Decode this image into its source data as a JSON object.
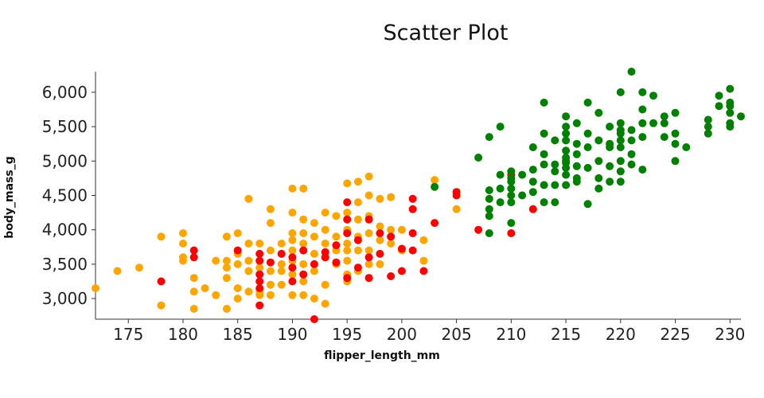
{
  "chart_data": {
    "type": "scatter",
    "title": "Scatter Plot",
    "xlabel": "flipper_length_mm",
    "ylabel": "body_mass_g",
    "xlim": [
      172,
      231
    ],
    "ylim": [
      2700,
      6300
    ],
    "x_ticks": [
      175,
      180,
      185,
      190,
      195,
      200,
      205,
      210,
      215,
      220,
      225,
      230
    ],
    "y_ticks": [
      3000,
      3500,
      4000,
      4500,
      5000,
      5500,
      6000
    ],
    "y_tick_labels": [
      "3,000",
      "3,500",
      "4,000",
      "4,500",
      "5,000",
      "5,500",
      "6,000"
    ],
    "grid": false,
    "series": [
      {
        "color": "#FFA500",
        "points": [
          [
            172,
            3150
          ],
          [
            174,
            3400
          ],
          [
            176,
            3450
          ],
          [
            178,
            3900
          ],
          [
            178,
            2900
          ],
          [
            180,
            3950
          ],
          [
            180,
            3800
          ],
          [
            180,
            3600
          ],
          [
            180,
            3550
          ],
          [
            181,
            3300
          ],
          [
            181,
            3100
          ],
          [
            181,
            2850
          ],
          [
            182,
            3150
          ],
          [
            183,
            3550
          ],
          [
            183,
            3050
          ],
          [
            184,
            3900
          ],
          [
            184,
            3550
          ],
          [
            184,
            3450
          ],
          [
            184,
            3300
          ],
          [
            184,
            2850
          ],
          [
            185,
            3950
          ],
          [
            185,
            3650
          ],
          [
            185,
            3500
          ],
          [
            185,
            3150
          ],
          [
            185,
            3000
          ],
          [
            186,
            4450
          ],
          [
            186,
            3800
          ],
          [
            186,
            3550
          ],
          [
            186,
            3400
          ],
          [
            186,
            3100
          ],
          [
            187,
            3800
          ],
          [
            187,
            3550
          ],
          [
            187,
            3450
          ],
          [
            187,
            3100
          ],
          [
            187,
            3050
          ],
          [
            188,
            4300
          ],
          [
            188,
            4100
          ],
          [
            188,
            3700
          ],
          [
            188,
            3400
          ],
          [
            188,
            3200
          ],
          [
            188,
            3050
          ],
          [
            189,
            3800
          ],
          [
            189,
            3650
          ],
          [
            189,
            3500
          ],
          [
            189,
            3400
          ],
          [
            189,
            3200
          ],
          [
            190,
            4600
          ],
          [
            190,
            4250
          ],
          [
            190,
            3950
          ],
          [
            190,
            3850
          ],
          [
            190,
            3700
          ],
          [
            190,
            3550
          ],
          [
            190,
            3450
          ],
          [
            190,
            3350
          ],
          [
            190,
            3050
          ],
          [
            191,
            4600
          ],
          [
            191,
            4150
          ],
          [
            191,
            3950
          ],
          [
            191,
            3800
          ],
          [
            191,
            3700
          ],
          [
            191,
            3500
          ],
          [
            191,
            3250
          ],
          [
            191,
            3050
          ],
          [
            192,
            4100
          ],
          [
            192,
            3900
          ],
          [
            192,
            3650
          ],
          [
            192,
            3400
          ],
          [
            192,
            3000
          ],
          [
            193,
            4250
          ],
          [
            193,
            4000
          ],
          [
            193,
            3800
          ],
          [
            193,
            3600
          ],
          [
            193,
            3200
          ],
          [
            193,
            2925
          ],
          [
            194,
            4200
          ],
          [
            194,
            3900
          ],
          [
            194,
            3700
          ],
          [
            194,
            3500
          ],
          [
            195,
            4675
          ],
          [
            195,
            4250
          ],
          [
            195,
            4000
          ],
          [
            195,
            3800
          ],
          [
            195,
            3700
          ],
          [
            195,
            3550
          ],
          [
            195,
            3350
          ],
          [
            195,
            3250
          ],
          [
            196,
            4700
          ],
          [
            196,
            4400
          ],
          [
            196,
            4150
          ],
          [
            196,
            3900
          ],
          [
            196,
            3700
          ],
          [
            196,
            3400
          ],
          [
            197,
            4775
          ],
          [
            197,
            4500
          ],
          [
            197,
            4200
          ],
          [
            197,
            3950
          ],
          [
            197,
            3700
          ],
          [
            197,
            3500
          ],
          [
            197,
            3300
          ],
          [
            198,
            4450
          ],
          [
            198,
            4050
          ],
          [
            198,
            3850
          ],
          [
            198,
            3500
          ],
          [
            199,
            4475
          ],
          [
            199,
            4000
          ],
          [
            199,
            3800
          ],
          [
            200,
            4000
          ],
          [
            200,
            3700
          ],
          [
            202,
            3850
          ],
          [
            202,
            3550
          ],
          [
            203,
            4725
          ],
          [
            205,
            4550
          ],
          [
            205,
            4300
          ]
        ]
      },
      {
        "color": "#FF0000",
        "points": [
          [
            178,
            3250
          ],
          [
            181,
            3700
          ],
          [
            181,
            3600
          ],
          [
            185,
            3700
          ],
          [
            187,
            3650
          ],
          [
            187,
            3550
          ],
          [
            187,
            3350
          ],
          [
            187,
            3250
          ],
          [
            187,
            3150
          ],
          [
            187,
            2900
          ],
          [
            188,
            3525
          ],
          [
            189,
            3650
          ],
          [
            190,
            3600
          ],
          [
            190,
            3450
          ],
          [
            190,
            3250
          ],
          [
            191,
            3700
          ],
          [
            191,
            3350
          ],
          [
            192,
            3500
          ],
          [
            192,
            2700
          ],
          [
            193,
            3675
          ],
          [
            193,
            3600
          ],
          [
            194,
            3775
          ],
          [
            194,
            3525
          ],
          [
            195,
            4400
          ],
          [
            195,
            4150
          ],
          [
            195,
            3950
          ],
          [
            195,
            3300
          ],
          [
            196,
            3850
          ],
          [
            196,
            3450
          ],
          [
            197,
            4150
          ],
          [
            197,
            3600
          ],
          [
            197,
            3300
          ],
          [
            198,
            3950
          ],
          [
            198,
            3650
          ],
          [
            199,
            3900
          ],
          [
            199,
            3325
          ],
          [
            200,
            3725
          ],
          [
            200,
            3400
          ],
          [
            201,
            4450
          ],
          [
            201,
            4300
          ],
          [
            201,
            3950
          ],
          [
            201,
            3700
          ],
          [
            202,
            3400
          ],
          [
            203,
            4100
          ],
          [
            205,
            4550
          ],
          [
            205,
            4500
          ],
          [
            207,
            4000
          ],
          [
            210,
            3950
          ],
          [
            210,
            4800
          ],
          [
            212,
            4300
          ]
        ]
      },
      {
        "color": "#008000",
        "points": [
          [
            203,
            4625
          ],
          [
            207,
            5050
          ],
          [
            208,
            5350
          ],
          [
            208,
            4575
          ],
          [
            208,
            4450
          ],
          [
            208,
            4300
          ],
          [
            208,
            4200
          ],
          [
            208,
            3950
          ],
          [
            209,
            5500
          ],
          [
            209,
            4800
          ],
          [
            209,
            4600
          ],
          [
            209,
            4400
          ],
          [
            210,
            4850
          ],
          [
            210,
            4750
          ],
          [
            210,
            4700
          ],
          [
            210,
            4600
          ],
          [
            210,
            4500
          ],
          [
            210,
            4400
          ],
          [
            210,
            4100
          ],
          [
            211,
            4800
          ],
          [
            211,
            4500
          ],
          [
            212,
            5200
          ],
          [
            212,
            4875
          ],
          [
            212,
            4700
          ],
          [
            212,
            4550
          ],
          [
            213,
            5850
          ],
          [
            213,
            5400
          ],
          [
            213,
            5100
          ],
          [
            213,
            4950
          ],
          [
            213,
            4650
          ],
          [
            213,
            4400
          ],
          [
            214,
            5300
          ],
          [
            214,
            4950
          ],
          [
            214,
            4850
          ],
          [
            214,
            4650
          ],
          [
            214,
            4400
          ],
          [
            215,
            5650
          ],
          [
            215,
            5500
          ],
          [
            215,
            5400
          ],
          [
            215,
            5300
          ],
          [
            215,
            5150
          ],
          [
            215,
            5050
          ],
          [
            215,
            5000
          ],
          [
            215,
            4975
          ],
          [
            215,
            4900
          ],
          [
            215,
            4800
          ],
          [
            215,
            4650
          ],
          [
            216,
            5550
          ],
          [
            216,
            5250
          ],
          [
            216,
            5100
          ],
          [
            216,
            4925
          ],
          [
            216,
            4750
          ],
          [
            216,
            4700
          ],
          [
            217,
            5850
          ],
          [
            217,
            5400
          ],
          [
            217,
            5200
          ],
          [
            217,
            4900
          ],
          [
            217,
            4375
          ],
          [
            218,
            5700
          ],
          [
            218,
            5300
          ],
          [
            218,
            5000
          ],
          [
            218,
            4750
          ],
          [
            218,
            4600
          ],
          [
            219,
            5500
          ],
          [
            219,
            5250
          ],
          [
            219,
            5200
          ],
          [
            219,
            4925
          ],
          [
            219,
            4700
          ],
          [
            220,
            6000
          ],
          [
            220,
            5550
          ],
          [
            220,
            5450
          ],
          [
            220,
            5400
          ],
          [
            220,
            5300
          ],
          [
            220,
            5200
          ],
          [
            220,
            5000
          ],
          [
            220,
            4850
          ],
          [
            220,
            4700
          ],
          [
            221,
            6300
          ],
          [
            221,
            5450
          ],
          [
            221,
            5300
          ],
          [
            221,
            5100
          ],
          [
            221,
            4950
          ],
          [
            222,
            6000
          ],
          [
            222,
            5750
          ],
          [
            222,
            5550
          ],
          [
            222,
            5350
          ],
          [
            222,
            4875
          ],
          [
            223,
            5950
          ],
          [
            223,
            5550
          ],
          [
            224,
            5650
          ],
          [
            224,
            5550
          ],
          [
            224,
            5350
          ],
          [
            225,
            5700
          ],
          [
            225,
            5400
          ],
          [
            225,
            5250
          ],
          [
            225,
            5000
          ],
          [
            226,
            5200
          ],
          [
            228,
            5600
          ],
          [
            228,
            5500
          ],
          [
            228,
            5400
          ],
          [
            229,
            5950
          ],
          [
            229,
            5800
          ],
          [
            230,
            6050
          ],
          [
            230,
            5850
          ],
          [
            230,
            5800
          ],
          [
            230,
            5700
          ],
          [
            230,
            5550
          ],
          [
            230,
            5500
          ],
          [
            231,
            5650
          ]
        ]
      }
    ]
  }
}
